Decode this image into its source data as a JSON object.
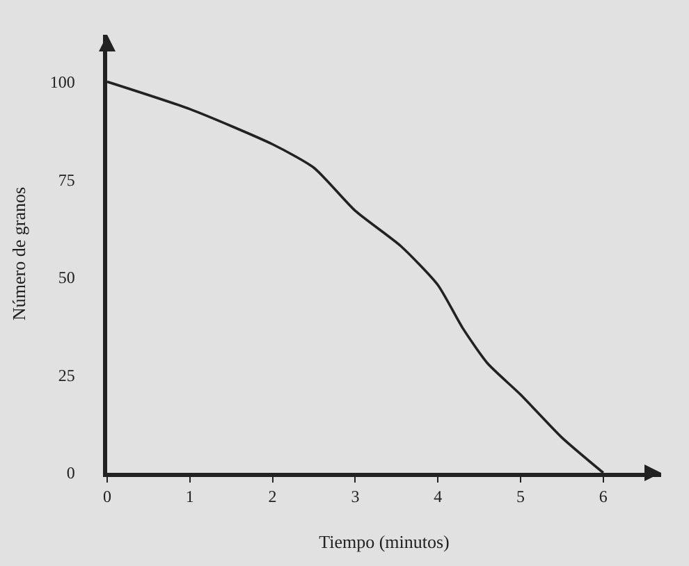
{
  "chart_data": {
    "type": "line",
    "xlabel": "Tiempo (minutos)",
    "ylabel": "Número de granos",
    "x": [
      0,
      1,
      2,
      2.5,
      3,
      3.55,
      4,
      4.3,
      4.6,
      5,
      5.5,
      6
    ],
    "series": [
      {
        "color": "#222222",
        "values": [
          100,
          93,
          84,
          78,
          67,
          58,
          48,
          37,
          28,
          20,
          9,
          0
        ]
      }
    ],
    "xlim": [
      0,
      6.7
    ],
    "xticks": [
      0,
      1,
      2,
      3,
      4,
      5,
      6
    ],
    "ylim": [
      0,
      112
    ],
    "yticks": [
      0,
      25,
      50,
      75,
      100
    ],
    "grid": false,
    "legend": false,
    "marker": "none",
    "line_style": "solid"
  }
}
